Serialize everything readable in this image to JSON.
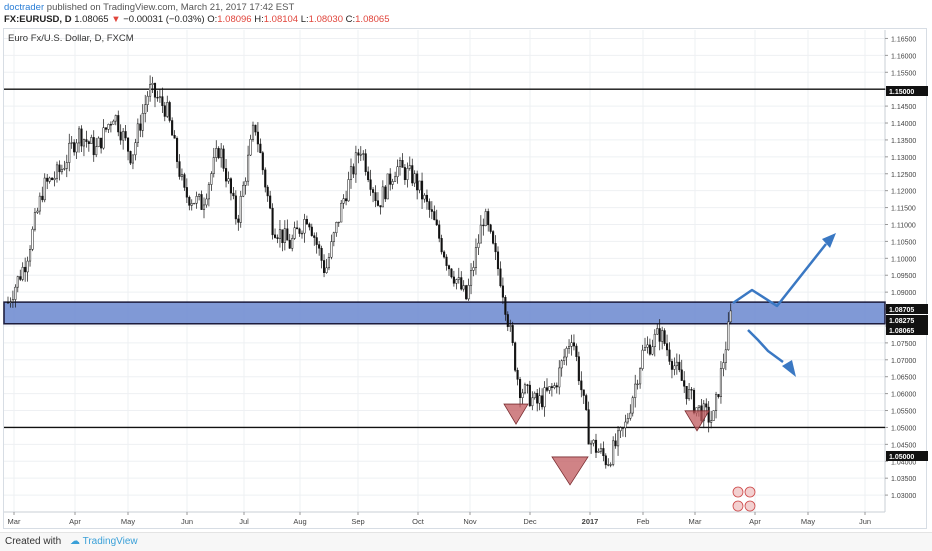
{
  "header": {
    "username": "doctrader",
    "published_text": "published on TradingView.com, March 21, 2017 17:42 EST",
    "symbol": "FX:EURUSD, D",
    "last": "1.08065",
    "change": "−0.00031 (−0.03%)",
    "o_label": "O:",
    "o_value": "1.08096",
    "h_label": "H:",
    "h_value": "1.08104",
    "l_label": "L:",
    "l_value": "1.08030",
    "c_label": "C:",
    "c_value": "1.08065"
  },
  "chart_title": "Euro Fx/U.S. Dollar, D, FXCM",
  "footer": {
    "created": "Created with",
    "brand": "TradingView"
  },
  "colors": {
    "zone_fill": "#6a87cf",
    "triangle_fill": "#c0595e",
    "arrow": "#3a78c3",
    "candle": "#111111"
  },
  "chart_data": {
    "type": "candlestick",
    "ylim": [
      1.025,
      1.1675
    ],
    "y_ticks": [
      "1.16500",
      "1.16000",
      "1.15500",
      "1.15000",
      "1.14500",
      "1.14000",
      "1.13500",
      "1.13000",
      "1.12500",
      "1.12000",
      "1.11500",
      "1.11000",
      "1.10500",
      "1.10000",
      "1.09500",
      "1.09000",
      "1.08500",
      "1.08000",
      "1.07500",
      "1.07000",
      "1.06500",
      "1.06000",
      "1.05500",
      "1.05000",
      "1.04500",
      "1.04000",
      "1.03500",
      "1.03000"
    ],
    "x_ticks": [
      "Mar",
      "Apr",
      "May",
      "Jun",
      "Jul",
      "Aug",
      "Sep",
      "Oct",
      "Nov",
      "Dec",
      "2017",
      "Feb",
      "Mar",
      "Apr",
      "May",
      "Jun"
    ],
    "price_path": [
      [
        1.087,
        "Mar"
      ],
      [
        1.099,
        "Mar"
      ],
      [
        1.121,
        "Mar"
      ],
      [
        1.126,
        "Mar"
      ],
      [
        1.137,
        "Apr"
      ],
      [
        1.132,
        "Apr"
      ],
      [
        1.143,
        "Apr"
      ],
      [
        1.13,
        "Apr"
      ],
      [
        1.15,
        "May"
      ],
      [
        1.144,
        "May"
      ],
      [
        1.119,
        "May"
      ],
      [
        1.116,
        "Jun"
      ],
      [
        1.133,
        "Jun"
      ],
      [
        1.111,
        "Jun"
      ],
      [
        1.14,
        "Jun"
      ],
      [
        1.11,
        "Jul"
      ],
      [
        1.104,
        "Jul"
      ],
      [
        1.113,
        "Jul"
      ],
      [
        1.096,
        "Aug"
      ],
      [
        1.117,
        "Aug"
      ],
      [
        1.133,
        "Aug"
      ],
      [
        1.116,
        "Sep"
      ],
      [
        1.127,
        "Sep"
      ],
      [
        1.124,
        "Oct"
      ],
      [
        1.113,
        "Oct"
      ],
      [
        1.098,
        "Oct"
      ],
      [
        1.088,
        "Oct"
      ],
      [
        1.113,
        "Nov"
      ],
      [
        1.093,
        "Nov"
      ],
      [
        1.062,
        "Nov"
      ],
      [
        1.057,
        "Nov"
      ],
      [
        1.062,
        "Dec"
      ],
      [
        1.078,
        "Dec"
      ],
      [
        1.046,
        "Dec"
      ],
      [
        1.04,
        "Dec"
      ],
      [
        1.05,
        "2017"
      ],
      [
        1.072,
        "2017"
      ],
      [
        1.078,
        "Feb"
      ],
      [
        1.066,
        "Feb"
      ],
      [
        1.056,
        "Mar"
      ],
      [
        1.052,
        "Mar"
      ],
      [
        1.083,
        "Mar"
      ]
    ],
    "horizontal_lines": [
      1.15,
      1.05
    ],
    "zone": [
      1.08065,
      1.08705
    ],
    "price_labels": [
      "1.15000",
      "1.08705",
      "1.08275",
      "1.08065",
      "1.05000"
    ],
    "patterns": [
      {
        "name": "left shoulder",
        "price": 1.051,
        "month": "Nov"
      },
      {
        "name": "head",
        "price": 1.033,
        "month": "Dec"
      },
      {
        "name": "right shoulder",
        "price": 1.049,
        "month": "Mar"
      }
    ],
    "projections": [
      "bullish breakout above 1.08705 toward ~1.108",
      "bearish rejection toward ~1.069"
    ],
    "grid": true
  }
}
